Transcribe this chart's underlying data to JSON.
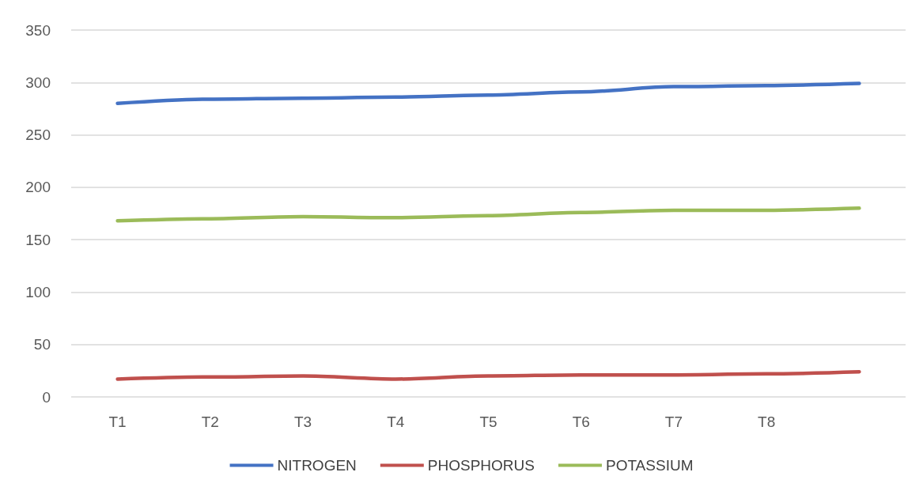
{
  "chart_data": {
    "type": "line",
    "categories": [
      "T1",
      "T2",
      "T3",
      "T4",
      "T5",
      "T6",
      "T7",
      "T8",
      null
    ],
    "series": [
      {
        "name": "NITROGEN",
        "color": "#4472c4",
        "values": [
          280,
          284,
          285,
          286,
          288,
          291,
          296,
          297,
          299
        ]
      },
      {
        "name": "PHOSPHORUS",
        "color": "#c0504d",
        "values": [
          17,
          19,
          20,
          17,
          20,
          21,
          21,
          22,
          24
        ]
      },
      {
        "name": "POTASSIUM",
        "color": "#9bbb59",
        "values": [
          168,
          170,
          172,
          171,
          173,
          176,
          178,
          178,
          180
        ]
      }
    ],
    "ylim": [
      0,
      350
    ],
    "yticks": [
      0,
      50,
      100,
      150,
      200,
      250,
      300,
      350
    ],
    "grid": "y",
    "legend": "bottom",
    "marker": "none",
    "line_style": "solid"
  }
}
